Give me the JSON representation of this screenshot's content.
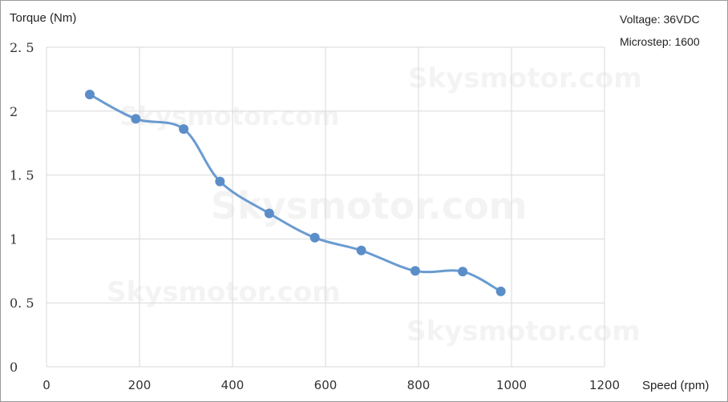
{
  "chart_data": {
    "type": "line",
    "title": "",
    "xlabel": "Speed (rpm)",
    "ylabel": "Torque (Nm)",
    "xlim": [
      0,
      1200
    ],
    "ylim": [
      0,
      2.5
    ],
    "x_ticks": [
      "0",
      "200",
      "400",
      "600",
      "800",
      "1000",
      "1200"
    ],
    "y_ticks": [
      "0",
      "0. 5",
      "1",
      "1. 5",
      "2",
      "2. 5"
    ],
    "x_tick_values": [
      0,
      200,
      400,
      600,
      800,
      1000,
      1200
    ],
    "y_tick_values": [
      0,
      0.5,
      1,
      1.5,
      2,
      2.5
    ],
    "grid": true,
    "legend": "none",
    "annotations": [
      "Voltage: 36VDC",
      "Microstep: 1600"
    ],
    "watermarks": [
      "Skysmotor.com",
      "Skysmotor.com",
      "Skysmotor.com",
      "Skysmotor.com",
      "Skysmotor.com"
    ],
    "series": [
      {
        "color": "#5b8ec8",
        "x": [
          93,
          192,
          295,
          373,
          479,
          577,
          677,
          793,
          895,
          977
        ],
        "y": [
          2.13,
          1.94,
          1.86,
          1.45,
          1.2,
          1.01,
          0.91,
          0.75,
          0.745,
          0.59
        ]
      }
    ]
  }
}
